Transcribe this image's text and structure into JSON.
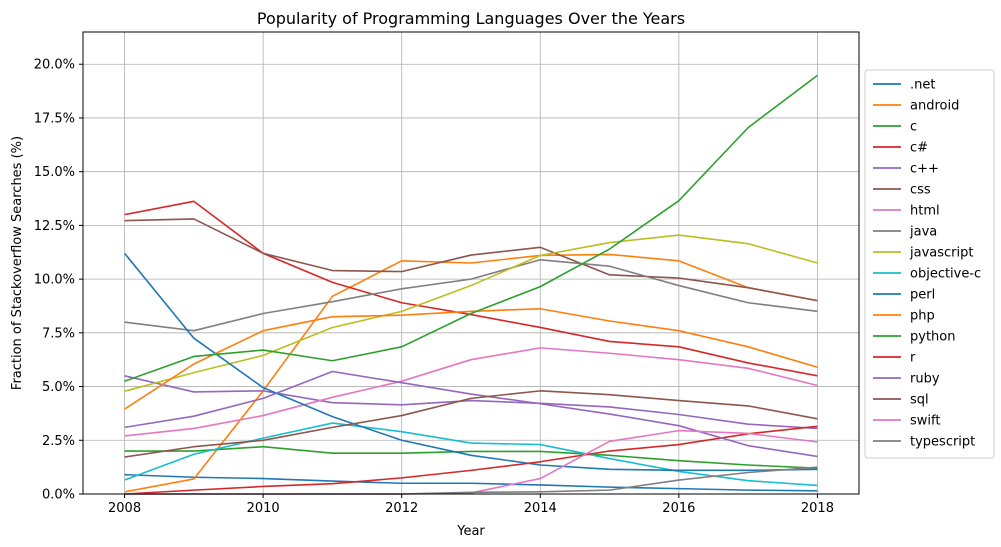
{
  "chart_data": {
    "type": "line",
    "title": "Popularity of Programming Languages Over the Years",
    "xlabel": "Year",
    "ylabel": "Fraction of Stackoverflow Searches (%)",
    "x": [
      2008,
      2009,
      2010,
      2011,
      2012,
      2013,
      2014,
      2015,
      2016,
      2017,
      2018
    ],
    "xlim": [
      2007.4,
      2018.6
    ],
    "ylim": [
      0,
      0.215
    ],
    "x_ticks": [
      2008,
      2010,
      2012,
      2014,
      2016,
      2018
    ],
    "x_tick_labels": [
      "2008",
      "2010",
      "2012",
      "2014",
      "2016",
      "2018"
    ],
    "y_ticks": [
      0,
      0.025,
      0.05,
      0.075,
      0.1,
      0.125,
      0.15,
      0.175,
      0.2
    ],
    "y_tick_labels": [
      "0.0%",
      "2.5%",
      "5.0%",
      "7.5%",
      "10.0%",
      "12.5%",
      "15.0%",
      "17.5%",
      "20.0%"
    ],
    "grid": true,
    "legend_position": "right",
    "series": [
      {
        "name": ".net",
        "color": "#1f77b4",
        "values": [
          0.009,
          0.0078,
          0.0072,
          0.006,
          0.005,
          0.005,
          0.0042,
          0.0032,
          0.0025,
          0.0018,
          0.0015
        ]
      },
      {
        "name": "android",
        "color": "#ff7f0e",
        "values": [
          0.001,
          0.007,
          0.048,
          0.092,
          0.1085,
          0.1075,
          0.111,
          0.1115,
          0.1085,
          0.096,
          0.09
        ]
      },
      {
        "name": "c",
        "color": "#2ca02c",
        "values": [
          0.02,
          0.02,
          0.022,
          0.019,
          0.019,
          0.0198,
          0.0198,
          0.018,
          0.0155,
          0.0135,
          0.012
        ]
      },
      {
        "name": "c#",
        "color": "#d62728",
        "values": [
          0.13,
          0.1362,
          0.112,
          0.0985,
          0.089,
          0.0835,
          0.0775,
          0.071,
          0.0685,
          0.061,
          0.055
        ]
      },
      {
        "name": "c++",
        "color": "#9467bd",
        "values": [
          0.055,
          0.0475,
          0.048,
          0.0425,
          0.0415,
          0.0435,
          0.0422,
          0.0405,
          0.037,
          0.0325,
          0.0305
        ]
      },
      {
        "name": "css",
        "color": "#8c564b",
        "values": [
          0.1272,
          0.128,
          0.112,
          0.104,
          0.1035,
          0.1112,
          0.1148,
          0.102,
          0.1005,
          0.096,
          0.09
        ]
      },
      {
        "name": "html",
        "color": "#e377c2",
        "values": [
          0.027,
          0.0305,
          0.0365,
          0.045,
          0.0525,
          0.0625,
          0.068,
          0.0655,
          0.0625,
          0.0585,
          0.0505
        ]
      },
      {
        "name": "java",
        "color": "#7f7f7f",
        "values": [
          0.08,
          0.076,
          0.084,
          0.0895,
          0.0955,
          0.1,
          0.109,
          0.106,
          0.097,
          0.089,
          0.085
        ]
      },
      {
        "name": "javascript",
        "color": "#bcbd22",
        "values": [
          0.0478,
          0.0565,
          0.0645,
          0.0775,
          0.085,
          0.097,
          0.111,
          0.117,
          0.1205,
          0.1165,
          0.1075
        ]
      },
      {
        "name": "objective-c",
        "color": "#17becf",
        "values": [
          0.0065,
          0.0185,
          0.026,
          0.033,
          0.029,
          0.0237,
          0.023,
          0.0165,
          0.0105,
          0.0062,
          0.004
        ]
      },
      {
        "name": "perl",
        "color": "#1f77b4",
        "values": [
          0.112,
          0.0725,
          0.0495,
          0.036,
          0.025,
          0.018,
          0.0135,
          0.0115,
          0.011,
          0.011,
          0.0115
        ]
      },
      {
        "name": "php",
        "color": "#ff7f0e",
        "values": [
          0.0395,
          0.0605,
          0.076,
          0.0825,
          0.0832,
          0.085,
          0.0862,
          0.0805,
          0.076,
          0.0685,
          0.059
        ]
      },
      {
        "name": "python",
        "color": "#2ca02c",
        "values": [
          0.0525,
          0.064,
          0.067,
          0.062,
          0.0685,
          0.084,
          0.0965,
          0.114,
          0.1365,
          0.1705,
          0.1948
        ]
      },
      {
        "name": "r",
        "color": "#d62728",
        "values": [
          0.0,
          0.0018,
          0.0035,
          0.0048,
          0.0075,
          0.011,
          0.015,
          0.02,
          0.023,
          0.028,
          0.0315
        ]
      },
      {
        "name": "ruby",
        "color": "#9467bd",
        "values": [
          0.031,
          0.0362,
          0.0445,
          0.057,
          0.0518,
          0.0465,
          0.042,
          0.0372,
          0.0318,
          0.0225,
          0.0175
        ]
      },
      {
        "name": "sql",
        "color": "#8c564b",
        "values": [
          0.0172,
          0.022,
          0.025,
          0.031,
          0.0365,
          0.0445,
          0.048,
          0.0462,
          0.0435,
          0.041,
          0.035
        ]
      },
      {
        "name": "swift",
        "color": "#e377c2",
        "values": [
          0.0,
          0.0,
          0.0,
          0.0,
          0.0,
          0.0005,
          0.0072,
          0.0245,
          0.0295,
          0.0282,
          0.0242
        ]
      },
      {
        "name": "typescript",
        "color": "#7f7f7f",
        "values": [
          0.0,
          0.0,
          0.0,
          0.0,
          0.0,
          0.0008,
          0.001,
          0.0018,
          0.0065,
          0.01,
          0.0125
        ]
      }
    ]
  }
}
